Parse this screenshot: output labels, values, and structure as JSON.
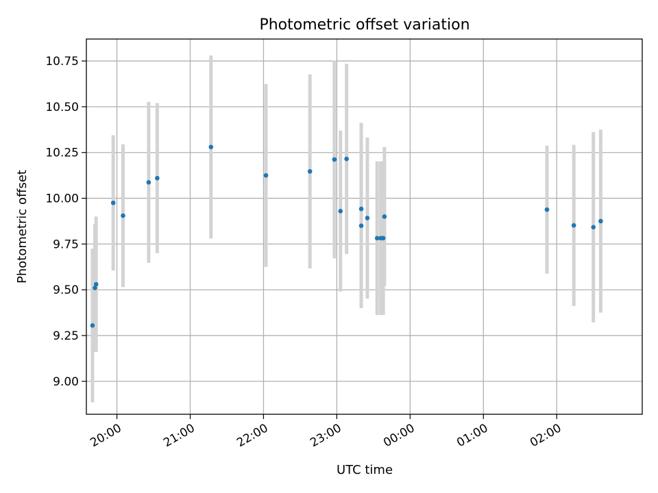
{
  "chart_data": {
    "type": "scatter",
    "title": "Photometric offset variation",
    "xlabel": "UTC time",
    "ylabel": "Photometric offset",
    "grid": true,
    "x_unit": "UTC time (HH:MM)",
    "xlim": [
      "19:35",
      "03:10"
    ],
    "ylim": [
      8.82,
      10.87
    ],
    "x_ticks": [
      "20:00",
      "21:00",
      "22:00",
      "23:00",
      "00:00",
      "01:00",
      "02:00"
    ],
    "y_ticks": [
      "9.00",
      "9.25",
      "9.50",
      "9.75",
      "10.00",
      "10.25",
      "10.50",
      "10.75"
    ],
    "colors": {
      "points": "#1f77b4",
      "error_bars": "#d3d3d3",
      "grid": "#b0b0b0"
    },
    "points": [
      {
        "x": "19:40",
        "y": 9.305,
        "err": 0.42
      },
      {
        "x": "19:42",
        "y": 9.51,
        "err": 0.35
      },
      {
        "x": "19:43",
        "y": 9.53,
        "err": 0.37
      },
      {
        "x": "19:57",
        "y": 9.975,
        "err": 0.37
      },
      {
        "x": "20:05",
        "y": 9.905,
        "err": 0.39
      },
      {
        "x": "20:26",
        "y": 10.087,
        "err": 0.44
      },
      {
        "x": "20:33",
        "y": 10.11,
        "err": 0.41
      },
      {
        "x": "21:17",
        "y": 10.28,
        "err": 0.5
      },
      {
        "x": "22:02",
        "y": 10.125,
        "err": 0.5
      },
      {
        "x": "22:38",
        "y": 10.147,
        "err": 0.53
      },
      {
        "x": "22:58",
        "y": 10.212,
        "err": 0.54
      },
      {
        "x": "23:03",
        "y": 9.93,
        "err": 0.44
      },
      {
        "x": "23:08",
        "y": 10.215,
        "err": 0.52
      },
      {
        "x": "23:20",
        "y": 9.942,
        "err": 0.47
      },
      {
        "x": "23:20",
        "y": 9.85,
        "err": 0.45
      },
      {
        "x": "23:25",
        "y": 9.892,
        "err": 0.44
      },
      {
        "x": "23:33",
        "y": 9.782,
        "err": 0.42
      },
      {
        "x": "23:36",
        "y": 9.782,
        "err": 0.42
      },
      {
        "x": "23:38",
        "y": 9.782,
        "err": 0.42
      },
      {
        "x": "23:39",
        "y": 9.9,
        "err": 0.38
      },
      {
        "x": "01:52",
        "y": 9.938,
        "err": 0.35
      },
      {
        "x": "02:14",
        "y": 9.852,
        "err": 0.44
      },
      {
        "x": "02:30",
        "y": 9.842,
        "err": 0.52
      },
      {
        "x": "02:36",
        "y": 9.875,
        "err": 0.5
      }
    ]
  }
}
